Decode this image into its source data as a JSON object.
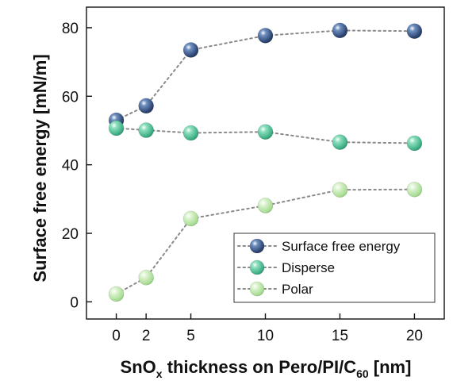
{
  "chart_data": {
    "type": "scatter",
    "xlabel": "SnOx thickness on Pero/PI/C60 [nm]",
    "xlabel_parts": {
      "base": "SnO",
      "sub1": "x",
      "mid": " thickness on Pero/PI/C",
      "sub2": "60",
      "end": " [nm]"
    },
    "ylabel": "Surface free energy [mN/m]",
    "xlim": [
      -2,
      22
    ],
    "ylim": [
      -5,
      86
    ],
    "xticks": [
      0,
      2,
      5,
      10,
      15,
      20
    ],
    "yticks": [
      0,
      20,
      40,
      60,
      80
    ],
    "x": [
      0,
      2,
      5,
      10,
      15,
      20
    ],
    "series": [
      {
        "name": "Surface free energy",
        "values": [
          53,
          57.2,
          73.5,
          77.7,
          79.2,
          79
        ],
        "color": "#3d5a8c"
      },
      {
        "name": "Disperse",
        "values": [
          50.7,
          50.1,
          49.3,
          49.6,
          46.6,
          46.3
        ],
        "color": "#55c49a"
      },
      {
        "name": "Polar",
        "values": [
          2.3,
          7.1,
          24.3,
          28.1,
          32.7,
          32.8
        ],
        "color": "#b9e4a8"
      }
    ],
    "line_style": "dotted",
    "line_color": "#8a8a8a",
    "legend_position": "bottom-right"
  }
}
